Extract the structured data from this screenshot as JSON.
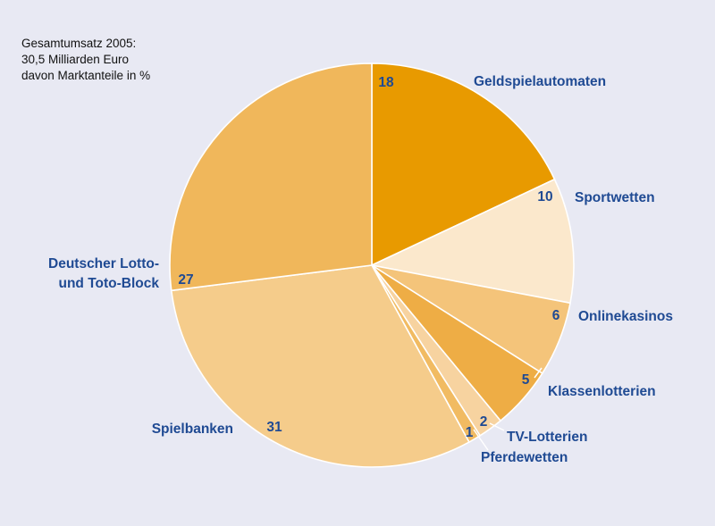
{
  "note": {
    "line1": "Gesamtumsatz 2005:",
    "line2": "30,5 Milliarden Euro",
    "line3": "davon Marktanteile in %"
  },
  "chart_data": {
    "type": "pie",
    "title": "",
    "unit": "%",
    "slices": [
      {
        "label": "Geldspielautomaten",
        "value": 18,
        "color": "#e89a00"
      },
      {
        "label": "Sportwetten",
        "value": 10,
        "color": "#fbe8cc"
      },
      {
        "label": "Onlinekasinos",
        "value": 6,
        "color": "#f4c47a"
      },
      {
        "label": "Klassenlotterien",
        "value": 5,
        "color": "#eead45"
      },
      {
        "label": "TV-Lotterien",
        "value": 2,
        "color": "#f7d3a0"
      },
      {
        "label": "Pferdewetten",
        "value": 1,
        "color": "#f1bb62"
      },
      {
        "label": "Spielbanken",
        "value": 31,
        "color": "#f5cc8b"
      },
      {
        "label": "Deutscher Lotto- und Toto-Block",
        "label_lines": [
          "Deutscher Lotto-",
          "und Toto-Block"
        ],
        "value": 27,
        "color": "#f0b75b"
      }
    ]
  }
}
